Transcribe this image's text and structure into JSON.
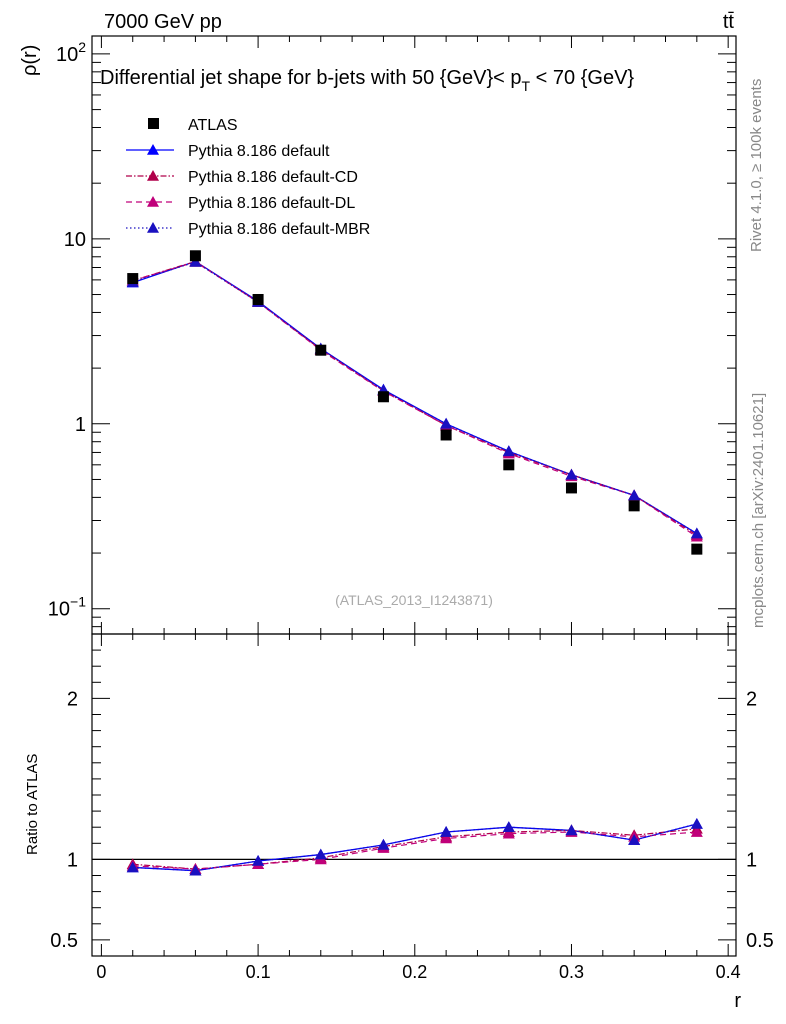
{
  "header": {
    "energy_label": "7000 GeV pp",
    "process_label": "tt̄",
    "title_prefix": "Differential jet shape for b-jets with 50 {GeV}< p",
    "title_subscript": "T",
    "title_suffix": " < 70 {GeV}",
    "watermark": "(ATLAS_2013_I1243871)"
  },
  "side_labels": {
    "rivet": "Rivet 4.1.0, ≥ 100k events",
    "mcplots": "mcplots.cern.ch [arXiv:2401.10621]"
  },
  "chart_data": {
    "type": "line",
    "title": "Differential jet shape for b-jets with 50 {GeV}< pT < 70 {GeV}",
    "xlabel": "r",
    "ylabel": "ρ(r)",
    "ratio_ylabel": "Ratio to ATLAS",
    "x_ticks": [
      "0",
      "0.1",
      "0.2",
      "0.3",
      "0.4"
    ],
    "x_tick_values": [
      0,
      0.1,
      0.2,
      0.3,
      0.4
    ],
    "xlim": [
      -0.006,
      0.405
    ],
    "main_y_ticks": [
      {
        "value": 0.1,
        "base": "10",
        "exp": "−1"
      },
      {
        "value": 1,
        "base": "1",
        "exp": ""
      },
      {
        "value": 10,
        "base": "10",
        "exp": ""
      },
      {
        "value": 100,
        "base": "10",
        "exp": "2"
      }
    ],
    "main_ylim": [
      0.073,
      125
    ],
    "ratio_y_ticks": [
      {
        "value": 0.5,
        "label": "0.5"
      },
      {
        "value": 1,
        "label": "1"
      },
      {
        "value": 2,
        "label": "2"
      }
    ],
    "ratio_ylim": [
      0.4,
      2.4
    ],
    "x": [
      0.02,
      0.06,
      0.1,
      0.14,
      0.18,
      0.22,
      0.26,
      0.3,
      0.34,
      0.38
    ],
    "data": {
      "name": "ATLAS",
      "color": "#000000",
      "values": [
        6.1,
        8.1,
        4.7,
        2.5,
        1.4,
        0.87,
        0.6,
        0.45,
        0.36,
        0.21
      ]
    },
    "series": [
      {
        "name": "Pythia 8.186 default",
        "color": "#0000ff",
        "dash": "",
        "width": 1.3,
        "values": [
          5.8,
          7.55,
          4.6,
          2.55,
          1.53,
          1.0,
          0.71,
          0.53,
          0.41,
          0.255
        ],
        "ratio": [
          0.95,
          0.93,
          0.99,
          1.03,
          1.09,
          1.17,
          1.2,
          1.18,
          1.12,
          1.22
        ]
      },
      {
        "name": "Pythia 8.186 default-CD",
        "color": "#b0004a",
        "dash": "6,2,1.5,2",
        "width": 1.2,
        "values": [
          5.95,
          7.55,
          4.55,
          2.52,
          1.51,
          0.98,
          0.7,
          0.53,
          0.41,
          0.25
        ],
        "ratio": [
          0.97,
          0.94,
          0.97,
          1.01,
          1.08,
          1.14,
          1.17,
          1.18,
          1.15,
          1.19
        ]
      },
      {
        "name": "Pythia 8.186 default-DL",
        "color": "#c0007a",
        "dash": "6,4",
        "width": 1.2,
        "values": [
          5.95,
          7.5,
          4.55,
          2.5,
          1.5,
          0.98,
          0.69,
          0.52,
          0.41,
          0.245
        ],
        "ratio": [
          0.96,
          0.94,
          0.97,
          1.0,
          1.07,
          1.13,
          1.16,
          1.17,
          1.14,
          1.17
        ]
      },
      {
        "name": "Pythia 8.186 default-MBR",
        "color": "#1a10c0",
        "dash": "1.5,2.5",
        "width": 1.3,
        "values": [
          5.85,
          7.5,
          4.55,
          2.55,
          1.52,
          1.0,
          0.71,
          0.53,
          0.41,
          0.255
        ],
        "ratio": [
          0.95,
          0.93,
          0.99,
          1.03,
          1.09,
          1.17,
          1.2,
          1.18,
          1.12,
          1.22
        ]
      }
    ]
  }
}
